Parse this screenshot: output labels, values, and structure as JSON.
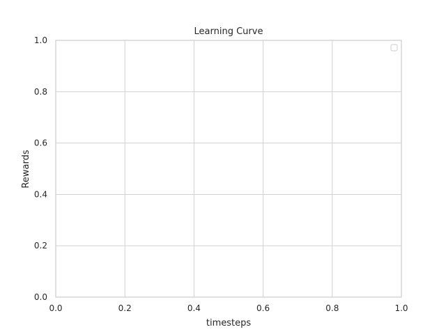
{
  "chart_data": {
    "type": "line",
    "title": "Learning Curve",
    "xlabel": "timesteps",
    "ylabel": "Rewards",
    "xlim": [
      0.0,
      1.0
    ],
    "ylim": [
      0.0,
      1.0
    ],
    "x_ticks": [
      0.0,
      0.2,
      0.4,
      0.6,
      0.8,
      1.0
    ],
    "y_ticks": [
      0.0,
      0.2,
      0.4,
      0.6,
      0.8,
      1.0
    ],
    "x_tick_labels": [
      "0.0",
      "0.2",
      "0.4",
      "0.6",
      "0.8",
      "1.0"
    ],
    "y_tick_labels": [
      "0.0",
      "0.2",
      "0.4",
      "0.6",
      "0.8",
      "1.0"
    ],
    "series": [],
    "grid": true,
    "legend": {
      "placement": "top-right",
      "entries": []
    }
  }
}
